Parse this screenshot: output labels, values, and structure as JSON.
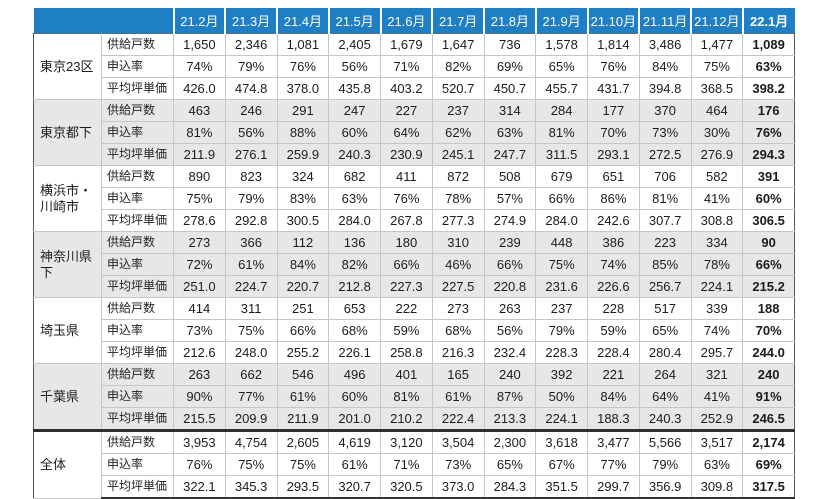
{
  "colors": {
    "header_bg": "#1f7fc5",
    "header_text": "#ffffff",
    "band_bg": "#ffffff",
    "band_alt_bg": "#e7e7e7",
    "grid": "#c6c6c6",
    "border_dark": "#555555"
  },
  "chart_data": {
    "type": "table",
    "columns": [
      "21.2月",
      "21.3月",
      "21.4月",
      "21.5月",
      "21.6月",
      "21.7月",
      "21.8月",
      "21.9月",
      "21.10月",
      "21.11月",
      "21.12月",
      "22.1月"
    ],
    "metrics": [
      "供給戸数",
      "申込率",
      "平均坪単価"
    ],
    "regions": [
      {
        "name": "東京23区",
        "values": [
          [
            "1,650",
            "2,346",
            "1,081",
            "2,405",
            "1,679",
            "1,647",
            "736",
            "1,578",
            "1,814",
            "3,486",
            "1,477",
            "1,089"
          ],
          [
            "74%",
            "79%",
            "76%",
            "56%",
            "71%",
            "82%",
            "69%",
            "65%",
            "76%",
            "84%",
            "75%",
            "63%"
          ],
          [
            "426.0",
            "474.8",
            "378.0",
            "435.8",
            "403.2",
            "520.7",
            "450.7",
            "455.7",
            "431.7",
            "394.8",
            "368.5",
            "398.2"
          ]
        ]
      },
      {
        "name": "東京都下",
        "values": [
          [
            "463",
            "246",
            "291",
            "247",
            "227",
            "237",
            "314",
            "284",
            "177",
            "370",
            "464",
            "176"
          ],
          [
            "81%",
            "56%",
            "88%",
            "60%",
            "64%",
            "62%",
            "63%",
            "81%",
            "70%",
            "73%",
            "30%",
            "76%"
          ],
          [
            "211.9",
            "276.1",
            "259.9",
            "240.3",
            "230.9",
            "245.1",
            "247.7",
            "311.5",
            "293.1",
            "272.5",
            "276.9",
            "294.3"
          ]
        ]
      },
      {
        "name": "横浜市・\n川崎市",
        "values": [
          [
            "890",
            "823",
            "324",
            "682",
            "411",
            "872",
            "508",
            "679",
            "651",
            "706",
            "582",
            "391"
          ],
          [
            "75%",
            "79%",
            "83%",
            "63%",
            "76%",
            "78%",
            "57%",
            "66%",
            "86%",
            "81%",
            "41%",
            "60%"
          ],
          [
            "278.6",
            "292.8",
            "300.5",
            "284.0",
            "267.8",
            "277.3",
            "274.9",
            "284.0",
            "242.6",
            "307.7",
            "308.8",
            "306.5"
          ]
        ]
      },
      {
        "name": "神奈川県下",
        "values": [
          [
            "273",
            "366",
            "112",
            "136",
            "180",
            "310",
            "239",
            "448",
            "386",
            "223",
            "334",
            "90"
          ],
          [
            "72%",
            "61%",
            "84%",
            "82%",
            "66%",
            "46%",
            "66%",
            "75%",
            "74%",
            "85%",
            "78%",
            "66%"
          ],
          [
            "251.0",
            "224.7",
            "220.7",
            "212.8",
            "227.3",
            "227.5",
            "220.8",
            "231.6",
            "226.6",
            "256.7",
            "224.1",
            "215.2"
          ]
        ]
      },
      {
        "name": "埼玉県",
        "values": [
          [
            "414",
            "311",
            "251",
            "653",
            "222",
            "273",
            "263",
            "237",
            "228",
            "517",
            "339",
            "188"
          ],
          [
            "73%",
            "75%",
            "66%",
            "68%",
            "59%",
            "68%",
            "56%",
            "79%",
            "59%",
            "65%",
            "74%",
            "70%"
          ],
          [
            "212.6",
            "248.0",
            "255.2",
            "226.1",
            "258.8",
            "216.3",
            "232.4",
            "228.3",
            "228.4",
            "280.4",
            "295.7",
            "244.0"
          ]
        ]
      },
      {
        "name": "千葉県",
        "values": [
          [
            "263",
            "662",
            "546",
            "496",
            "401",
            "165",
            "240",
            "392",
            "221",
            "264",
            "321",
            "240"
          ],
          [
            "90%",
            "77%",
            "61%",
            "60%",
            "81%",
            "61%",
            "87%",
            "50%",
            "84%",
            "64%",
            "41%",
            "91%"
          ],
          [
            "215.5",
            "209.9",
            "211.9",
            "201.0",
            "210.2",
            "222.4",
            "213.3",
            "224.1",
            "188.3",
            "240.3",
            "252.9",
            "246.5"
          ]
        ]
      },
      {
        "name": "全体",
        "values": [
          [
            "3,953",
            "4,754",
            "2,605",
            "4,619",
            "3,120",
            "3,504",
            "2,300",
            "3,618",
            "3,477",
            "5,566",
            "3,517",
            "2,174"
          ],
          [
            "76%",
            "75%",
            "75%",
            "61%",
            "71%",
            "73%",
            "65%",
            "67%",
            "77%",
            "79%",
            "63%",
            "69%"
          ],
          [
            "322.1",
            "345.3",
            "293.5",
            "320.7",
            "320.5",
            "373.0",
            "284.3",
            "351.5",
            "299.7",
            "356.9",
            "309.8",
            "317.5"
          ]
        ]
      }
    ]
  }
}
